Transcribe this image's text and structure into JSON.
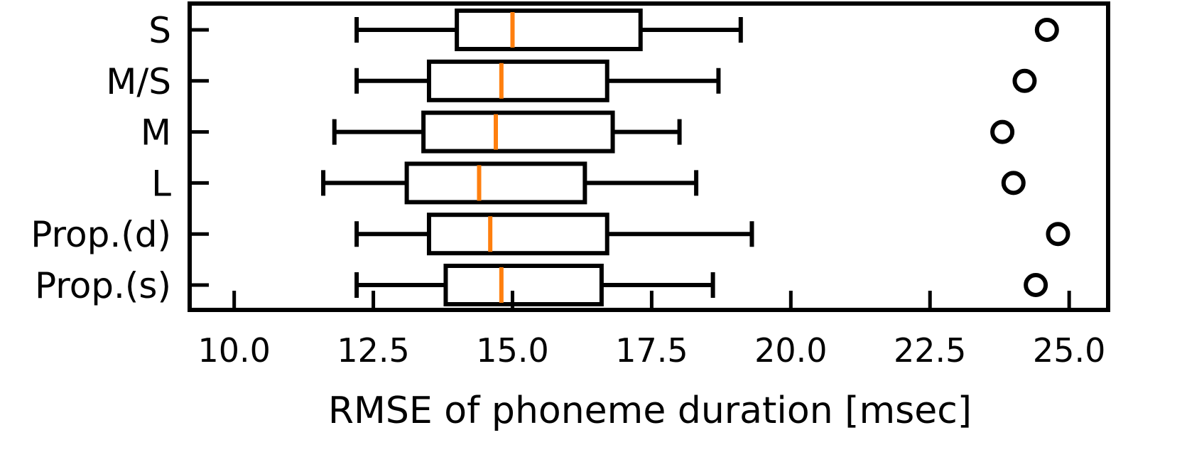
{
  "chart_data": {
    "type": "boxplot",
    "orientation": "horizontal",
    "xlabel": "RMSE of phoneme duration [msec]",
    "ylabel": "",
    "title": "",
    "xlim": [
      9.2,
      25.7
    ],
    "xticks": [
      10.0,
      12.5,
      15.0,
      17.5,
      20.0,
      22.5,
      25.0
    ],
    "xtick_labels": [
      "10.0",
      "12.5",
      "15.0",
      "17.5",
      "20.0",
      "22.5",
      "25.0"
    ],
    "grid": false,
    "legend": "none",
    "categories": [
      "S",
      "M/S",
      "M",
      "L",
      "Prop.(d)",
      "Prop.(s)"
    ],
    "boxes": [
      {
        "label": "S",
        "whisker_low": 12.2,
        "q1": 14.0,
        "median": 15.0,
        "q3": 17.3,
        "whisker_high": 19.1,
        "outliers": [
          24.6
        ]
      },
      {
        "label": "M/S",
        "whisker_low": 12.2,
        "q1": 13.5,
        "median": 14.8,
        "q3": 16.7,
        "whisker_high": 18.7,
        "outliers": [
          24.2
        ]
      },
      {
        "label": "M",
        "whisker_low": 11.8,
        "q1": 13.4,
        "median": 14.7,
        "q3": 16.8,
        "whisker_high": 18.0,
        "outliers": [
          23.8
        ]
      },
      {
        "label": "L",
        "whisker_low": 11.6,
        "q1": 13.1,
        "median": 14.4,
        "q3": 16.3,
        "whisker_high": 18.3,
        "outliers": [
          24.0
        ]
      },
      {
        "label": "Prop.(d)",
        "whisker_low": 12.2,
        "q1": 13.5,
        "median": 14.6,
        "q3": 16.7,
        "whisker_high": 19.3,
        "outliers": [
          24.8
        ]
      },
      {
        "label": "Prop.(s)",
        "whisker_low": 12.2,
        "q1": 13.8,
        "median": 14.8,
        "q3": 16.6,
        "whisker_high": 18.6,
        "outliers": [
          24.4
        ]
      }
    ],
    "colors": {
      "box": "#000000",
      "median": "#ff7f0e",
      "outlier": "#000000"
    }
  }
}
